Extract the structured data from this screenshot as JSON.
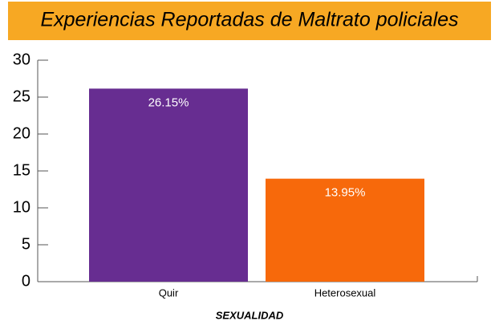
{
  "chart_data": {
    "type": "bar",
    "title": "Experiencias Reportadas de Maltrato policiales",
    "xlabel": "SEXUALIDAD",
    "categories": [
      "Quir",
      "Heterosexual"
    ],
    "values": [
      26.15,
      13.95
    ],
    "value_labels": [
      "26.15%",
      "13.95%"
    ],
    "colors": [
      "#672d91",
      "#f7690b"
    ],
    "ylim": [
      0,
      30
    ],
    "yticks": [
      0,
      5,
      10,
      15,
      20,
      25,
      30
    ]
  }
}
